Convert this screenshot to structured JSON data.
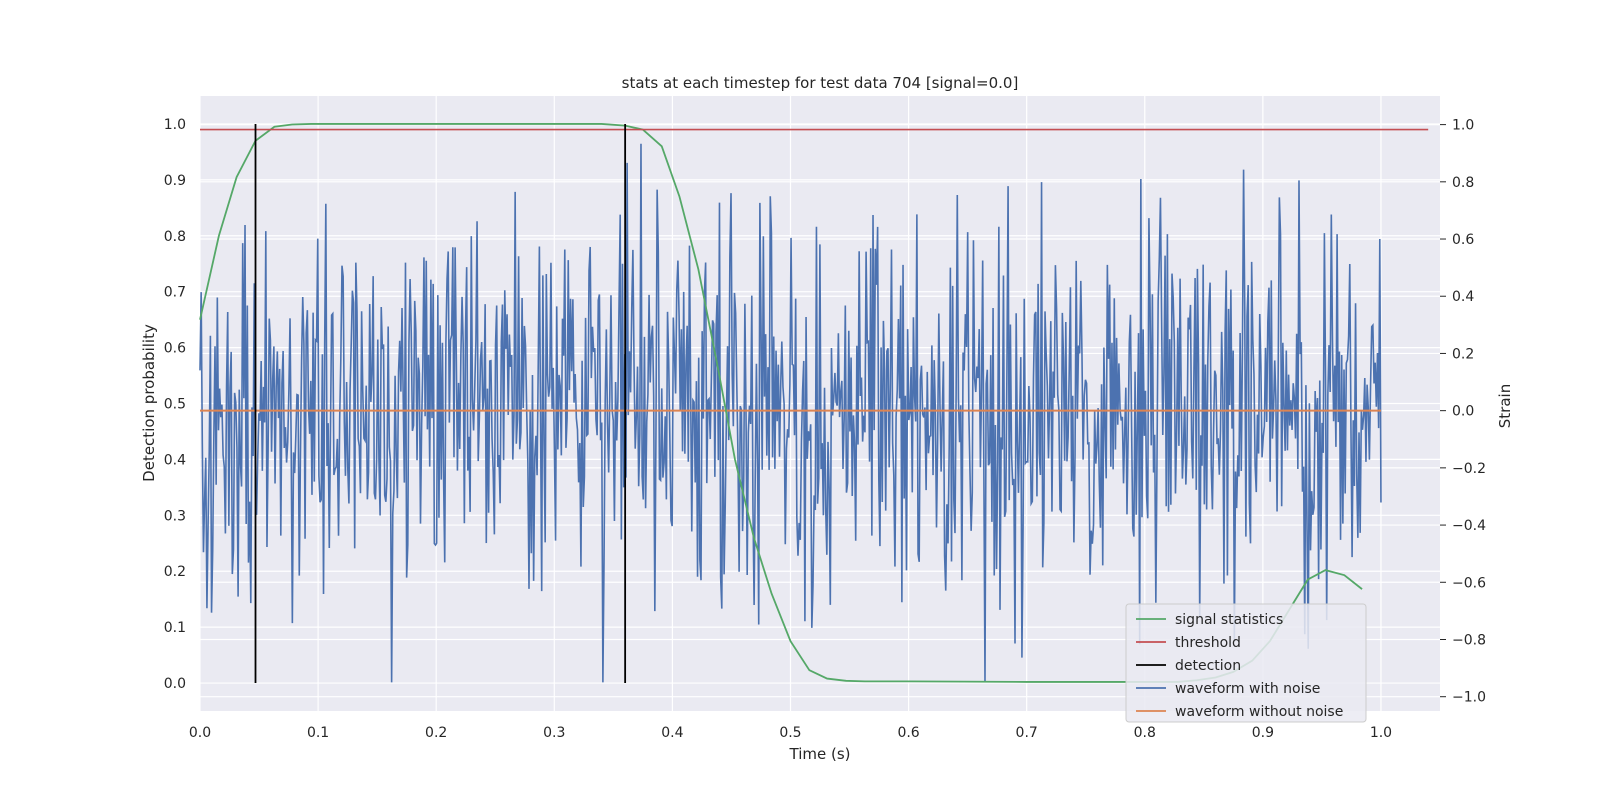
{
  "chart_data": {
    "type": "line",
    "title": "stats at each timestep for test data 704 [signal=0.0]",
    "xlabel": "Time (s)",
    "ylabel": "Detection probability",
    "y2label": "Strain",
    "xlim": [
      0.0,
      1.05
    ],
    "ylim": [
      -0.05,
      1.05
    ],
    "y2lim": [
      -1.05,
      1.1
    ],
    "x_ticks": [
      0.0,
      0.1,
      0.2,
      0.3,
      0.4,
      0.5,
      0.6,
      0.7,
      0.8,
      0.9,
      1.0
    ],
    "x_tick_labels": [
      "0.0",
      "0.1",
      "0.2",
      "0.3",
      "0.4",
      "0.5",
      "0.6",
      "0.7",
      "0.8",
      "0.9",
      "1.0"
    ],
    "y_ticks": [
      0.0,
      0.1,
      0.2,
      0.3,
      0.4,
      0.5,
      0.6,
      0.7,
      0.8,
      0.9,
      1.0
    ],
    "y_tick_labels": [
      "0.0",
      "0.1",
      "0.2",
      "0.3",
      "0.4",
      "0.5",
      "0.6",
      "0.7",
      "0.8",
      "0.9",
      "1.0"
    ],
    "y2_ticks": [
      -1.0,
      -0.8,
      -0.6,
      -0.4,
      -0.2,
      0.0,
      0.2,
      0.4,
      0.6,
      0.8,
      1.0
    ],
    "y2_tick_labels": [
      "−1.0",
      "−0.8",
      "−0.6",
      "−0.4",
      "−0.2",
      "0.0",
      "0.2",
      "0.4",
      "0.6",
      "0.8",
      "1.0"
    ],
    "grid": true,
    "legend_position": "bottom-right",
    "series": [
      {
        "name": "signal statistics",
        "axis": "left",
        "color": "#55a868",
        "x": [
          0.0,
          0.016,
          0.031,
          0.047,
          0.063,
          0.078,
          0.094,
          0.2,
          0.3,
          0.34,
          0.36,
          0.375,
          0.391,
          0.406,
          0.422,
          0.438,
          0.453,
          0.469,
          0.484,
          0.5,
          0.516,
          0.531,
          0.547,
          0.563,
          0.6,
          0.7,
          0.8,
          0.828,
          0.844,
          0.86,
          0.875,
          0.891,
          0.906,
          0.922,
          0.938,
          0.953,
          0.969,
          0.984
        ],
        "y": [
          0.65,
          0.8,
          0.905,
          0.97,
          0.995,
          0.999,
          1.0,
          1.0,
          1.0,
          1.0,
          0.997,
          0.99,
          0.96,
          0.87,
          0.74,
          0.57,
          0.4,
          0.26,
          0.16,
          0.075,
          0.023,
          0.008,
          0.004,
          0.003,
          0.003,
          0.002,
          0.002,
          0.002,
          0.005,
          0.01,
          0.02,
          0.04,
          0.075,
          0.13,
          0.185,
          0.202,
          0.193,
          0.168
        ]
      },
      {
        "name": "threshold",
        "axis": "left",
        "color": "#c44e52",
        "x": [
          0.0,
          1.04
        ],
        "y": [
          0.99,
          0.99
        ]
      },
      {
        "name": "detection",
        "axis": "left",
        "color": "#000000",
        "segments": [
          {
            "x": 0.047,
            "y": [
              0.0,
              1.0
            ]
          },
          {
            "x": 0.36,
            "y": [
              0.0,
              1.0
            ]
          }
        ]
      },
      {
        "name": "waveform with noise",
        "axis": "right",
        "color": "#4c72b0",
        "x_range": [
          0.0,
          1.0
        ],
        "n_points": 1024,
        "y_range_observed": [
          -0.95,
          1.0
        ],
        "y_std_approx": 0.32
      },
      {
        "name": "waveform without noise",
        "axis": "right",
        "color": "#dd8452",
        "x": [
          0.0,
          1.0
        ],
        "y": [
          0.0,
          0.0
        ]
      }
    ],
    "legend": [
      "signal statistics",
      "threshold",
      "detection",
      "waveform with noise",
      "waveform without noise"
    ]
  }
}
